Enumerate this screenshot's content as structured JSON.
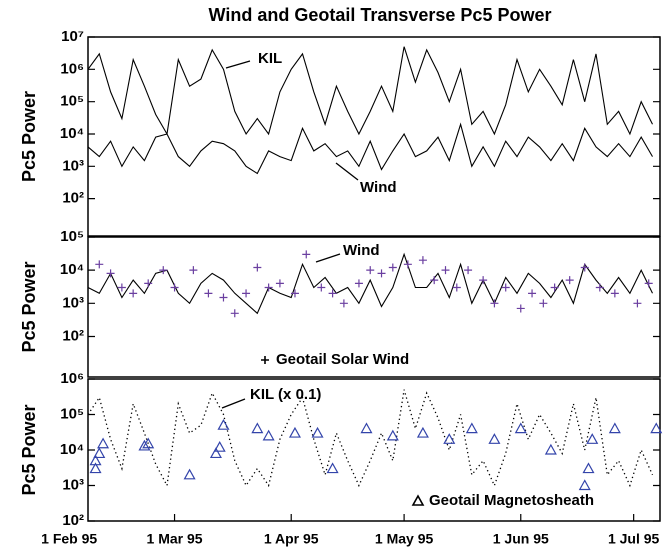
{
  "chart_data": [
    {
      "type": "line",
      "title": "Wind and Geotail Transverse Pc5 Power",
      "ylabel": "Pc5 Power",
      "log_scale": true,
      "xlim": [
        "1995-02-06",
        "1995-07-08"
      ],
      "ylim": [
        7,
        10000000
      ],
      "yticks": [
        {
          "value": 10000000,
          "label": "10⁷"
        },
        {
          "value": 1000000,
          "label": "10⁶"
        },
        {
          "value": 100000,
          "label": "10⁵"
        },
        {
          "value": 10000,
          "label": "10⁴"
        },
        {
          "value": 1000,
          "label": "10³"
        },
        {
          "value": 100,
          "label": "10²"
        }
      ],
      "annotations": [
        "KIL",
        "Wind"
      ],
      "x": [
        "1995-02-06",
        "1995-02-09",
        "1995-02-12",
        "1995-02-15",
        "1995-02-18",
        "1995-02-21",
        "1995-02-24",
        "1995-02-27",
        "1995-03-02",
        "1995-03-05",
        "1995-03-08",
        "1995-03-11",
        "1995-03-14",
        "1995-03-17",
        "1995-03-20",
        "1995-03-23",
        "1995-03-26",
        "1995-03-29",
        "1995-04-01",
        "1995-04-04",
        "1995-04-07",
        "1995-04-10",
        "1995-04-13",
        "1995-04-16",
        "1995-04-19",
        "1995-04-22",
        "1995-04-25",
        "1995-04-28",
        "1995-05-01",
        "1995-05-04",
        "1995-05-07",
        "1995-05-10",
        "1995-05-13",
        "1995-05-16",
        "1995-05-19",
        "1995-05-22",
        "1995-05-25",
        "1995-05-28",
        "1995-05-31",
        "1995-06-03",
        "1995-06-06",
        "1995-06-09",
        "1995-06-12",
        "1995-06-15",
        "1995-06-18",
        "1995-06-21",
        "1995-06-24",
        "1995-06-27",
        "1995-06-30",
        "1995-07-03",
        "1995-07-06"
      ],
      "series": [
        {
          "name": "KIL",
          "color": "#000000",
          "marker": "line",
          "values": [
            1000000,
            3000000,
            200000,
            30000,
            2000000,
            300000,
            40000,
            10000,
            2000000,
            300000,
            500000,
            4000000,
            1000000,
            50000,
            10000,
            30000,
            10000,
            200000,
            1000000,
            3000000,
            200000,
            20000,
            300000,
            50000,
            10000,
            50000,
            300000,
            50000,
            5000000,
            400000,
            4000000,
            800000,
            100000,
            1000000,
            20000,
            50000,
            10000,
            80000,
            2000000,
            200000,
            1000000,
            300000,
            80000,
            2000000,
            100000,
            3000000,
            20000,
            50000,
            10000,
            100000,
            20000
          ]
        },
        {
          "name": "Wind",
          "color": "#000000",
          "marker": "line",
          "values": [
            4000,
            2000,
            6000,
            1000,
            4000,
            1500,
            8000,
            10000,
            2000,
            1000,
            3000,
            6000,
            5000,
            3000,
            1000,
            600,
            3000,
            2000,
            1500,
            15000,
            3000,
            5000,
            2000,
            3000,
            1000,
            6000,
            800,
            3000,
            10000,
            2000,
            3000,
            8000,
            1500,
            20000,
            1000,
            4000,
            1000,
            6000,
            2000,
            8000,
            4000,
            1500,
            5000,
            1500,
            15000,
            4000,
            2000,
            5000,
            2000,
            8000,
            2000
          ]
        }
      ]
    },
    {
      "type": "line",
      "ylabel": "Pc5 Power",
      "log_scale": true,
      "xlim": [
        "1995-02-06",
        "1995-07-08"
      ],
      "ylim": [
        6,
        100000
      ],
      "yticks": [
        {
          "value": 100000,
          "label": "10⁵"
        },
        {
          "value": 10000,
          "label": "10⁴"
        },
        {
          "value": 1000,
          "label": "10³"
        },
        {
          "value": 100,
          "label": "10²"
        }
      ],
      "annotations": [
        "Wind"
      ],
      "x": [
        "1995-02-06",
        "1995-02-09",
        "1995-02-12",
        "1995-02-15",
        "1995-02-18",
        "1995-02-21",
        "1995-02-24",
        "1995-02-27",
        "1995-03-02",
        "1995-03-05",
        "1995-03-08",
        "1995-03-11",
        "1995-03-14",
        "1995-03-17",
        "1995-03-20",
        "1995-03-23",
        "1995-03-26",
        "1995-03-29",
        "1995-04-01",
        "1995-04-04",
        "1995-04-07",
        "1995-04-10",
        "1995-04-13",
        "1995-04-16",
        "1995-04-19",
        "1995-04-22",
        "1995-04-25",
        "1995-04-28",
        "1995-05-01",
        "1995-05-04",
        "1995-05-07",
        "1995-05-10",
        "1995-05-13",
        "1995-05-16",
        "1995-05-19",
        "1995-05-22",
        "1995-05-25",
        "1995-05-28",
        "1995-05-31",
        "1995-06-03",
        "1995-06-06",
        "1995-06-09",
        "1995-06-12",
        "1995-06-15",
        "1995-06-18",
        "1995-06-21",
        "1995-06-24",
        "1995-06-27",
        "1995-06-30",
        "1995-07-03",
        "1995-07-06"
      ],
      "series": [
        {
          "name": "Wind",
          "color": "#000000",
          "marker": "line",
          "values": [
            3000,
            2000,
            8000,
            1500,
            5000,
            2000,
            8000,
            10000,
            2000,
            1000,
            4000,
            8000,
            5000,
            2000,
            1000,
            500,
            3000,
            2000,
            1500,
            15000,
            3000,
            6000,
            2000,
            3000,
            1000,
            5000,
            800,
            3000,
            30000,
            3000,
            3000,
            8000,
            1500,
            15000,
            1000,
            5000,
            1000,
            6000,
            2000,
            8000,
            4000,
            1500,
            5000,
            1000,
            15000,
            5000,
            2000,
            6000,
            2000,
            10000,
            2000
          ]
        },
        {
          "name": "Geotail Solar Wind",
          "color": "#6a3fa0",
          "marker": "plus",
          "legend": true,
          "x": [
            "1995-02-09",
            "1995-02-12",
            "1995-02-15",
            "1995-02-18",
            "1995-02-22",
            "1995-02-26",
            "1995-03-01",
            "1995-03-06",
            "1995-03-10",
            "1995-03-14",
            "1995-03-17",
            "1995-03-20",
            "1995-03-23",
            "1995-03-26",
            "1995-03-29",
            "1995-04-02",
            "1995-04-05",
            "1995-04-09",
            "1995-04-12",
            "1995-04-15",
            "1995-04-19",
            "1995-04-22",
            "1995-04-25",
            "1995-04-28",
            "1995-05-02",
            "1995-05-06",
            "1995-05-09",
            "1995-05-12",
            "1995-05-15",
            "1995-05-18",
            "1995-05-22",
            "1995-05-25",
            "1995-05-28",
            "1995-06-01",
            "1995-06-04",
            "1995-06-07",
            "1995-06-10",
            "1995-06-14",
            "1995-06-18",
            "1995-06-22",
            "1995-06-26",
            "1995-07-02",
            "1995-07-05"
          ],
          "values": [
            15000,
            8000,
            3000,
            2000,
            4000,
            10000,
            3000,
            10000,
            2000,
            1500,
            500,
            2000,
            12000,
            3000,
            4000,
            2000,
            30000,
            3000,
            2000,
            1000,
            4000,
            10000,
            8000,
            12000,
            15000,
            20000,
            5000,
            10000,
            3000,
            10000,
            5000,
            1000,
            3000,
            700,
            2000,
            1000,
            3000,
            5000,
            12000,
            3000,
            2000,
            1000,
            4000
          ]
        }
      ]
    },
    {
      "type": "line",
      "ylabel": "Pc5 Power",
      "log_scale": true,
      "xlim": [
        "1995-02-06",
        "1995-07-08"
      ],
      "ylim": [
        100,
        1000000
      ],
      "yticks": [
        {
          "value": 1000000,
          "label": "10⁶"
        },
        {
          "value": 100000,
          "label": "10⁵"
        },
        {
          "value": 10000,
          "label": "10⁴"
        },
        {
          "value": 1000,
          "label": "10³"
        },
        {
          "value": 100,
          "label": "10²"
        }
      ],
      "xticks": [
        {
          "value": "1995-02-01",
          "label": "1 Feb 95"
        },
        {
          "value": "1995-03-01",
          "label": "1 Mar 95"
        },
        {
          "value": "1995-04-01",
          "label": "1 Apr 95"
        },
        {
          "value": "1995-05-01",
          "label": "1 May 95"
        },
        {
          "value": "1995-06-01",
          "label": "1 Jun 95"
        },
        {
          "value": "1995-07-01",
          "label": "1 Jul 95"
        }
      ],
      "annotations": [
        "KIL (x 0.1)"
      ],
      "x": [
        "1995-02-06",
        "1995-02-09",
        "1995-02-12",
        "1995-02-15",
        "1995-02-18",
        "1995-02-21",
        "1995-02-24",
        "1995-02-27",
        "1995-03-02",
        "1995-03-05",
        "1995-03-08",
        "1995-03-11",
        "1995-03-14",
        "1995-03-17",
        "1995-03-20",
        "1995-03-23",
        "1995-03-26",
        "1995-03-29",
        "1995-04-01",
        "1995-04-04",
        "1995-04-07",
        "1995-04-10",
        "1995-04-13",
        "1995-04-16",
        "1995-04-19",
        "1995-04-22",
        "1995-04-25",
        "1995-04-28",
        "1995-05-01",
        "1995-05-04",
        "1995-05-07",
        "1995-05-10",
        "1995-05-13",
        "1995-05-16",
        "1995-05-19",
        "1995-05-22",
        "1995-05-25",
        "1995-05-28",
        "1995-05-31",
        "1995-06-03",
        "1995-06-06",
        "1995-06-09",
        "1995-06-12",
        "1995-06-15",
        "1995-06-18",
        "1995-06-21",
        "1995-06-24",
        "1995-06-27",
        "1995-06-30",
        "1995-07-03",
        "1995-07-06"
      ],
      "series": [
        {
          "name": "KIL (x 0.1)",
          "color": "#000000",
          "marker": "dotted",
          "values": [
            100000,
            300000,
            20000,
            3000,
            200000,
            30000,
            4000,
            1000,
            200000,
            30000,
            50000,
            400000,
            100000,
            5000,
            1000,
            3000,
            1000,
            20000,
            100000,
            300000,
            20000,
            2000,
            30000,
            5000,
            1000,
            5000,
            30000,
            5000,
            500000,
            40000,
            400000,
            80000,
            10000,
            100000,
            2000,
            5000,
            1000,
            8000,
            200000,
            20000,
            100000,
            30000,
            8000,
            200000,
            10000,
            300000,
            2000,
            5000,
            1000,
            10000,
            2000
          ]
        },
        {
          "name": "Geotail Magnetosheath",
          "color": "#3344aa",
          "marker": "triangle",
          "legend": true,
          "x": [
            "1995-02-08",
            "1995-02-08",
            "1995-02-09",
            "1995-02-10",
            "1995-02-21",
            "1995-02-22",
            "1995-03-05",
            "1995-03-12",
            "1995-03-13",
            "1995-03-14",
            "1995-03-23",
            "1995-03-26",
            "1995-04-02",
            "1995-04-08",
            "1995-04-12",
            "1995-04-21",
            "1995-04-28",
            "1995-05-06",
            "1995-05-13",
            "1995-05-19",
            "1995-05-25",
            "1995-06-01",
            "1995-06-09",
            "1995-06-18",
            "1995-06-19",
            "1995-06-20",
            "1995-06-26",
            "1995-07-07"
          ],
          "values": [
            3000,
            5000,
            8000,
            15000,
            13000,
            15000,
            2000,
            8000,
            12000,
            50000,
            40000,
            25000,
            30000,
            30000,
            3000,
            40000,
            25000,
            30000,
            20000,
            40000,
            20000,
            40000,
            10000,
            1000,
            3000,
            20000,
            40000,
            40000
          ]
        }
      ]
    }
  ]
}
